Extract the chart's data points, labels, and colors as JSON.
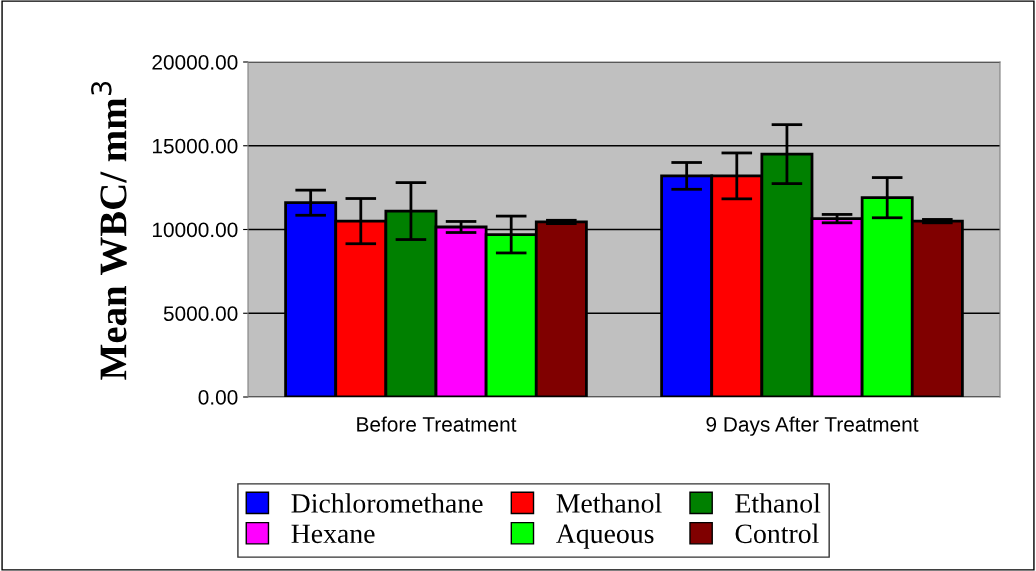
{
  "chart_data": {
    "type": "bar",
    "ylabel": "Mean WBC/ mm$^{3}$",
    "categories": [
      "Before Treatment",
      "9 Days After Treatment"
    ],
    "series": [
      {
        "name": "Dichloromethane",
        "color": "#0000ff",
        "values": [
          11600,
          13200
        ],
        "errors": [
          750,
          800
        ]
      },
      {
        "name": "Methanol",
        "color": "#ff0000",
        "values": [
          10500,
          13200
        ],
        "errors": [
          1350,
          1370
        ]
      },
      {
        "name": "Ethanol",
        "color": "#008000",
        "values": [
          11100,
          14500
        ],
        "errors": [
          1700,
          1760
        ]
      },
      {
        "name": "Hexane",
        "color": "#ff00ff",
        "values": [
          10150,
          10650
        ],
        "errors": [
          330,
          250
        ]
      },
      {
        "name": "Aqueous",
        "color": "#00ff00",
        "values": [
          9700,
          11900
        ],
        "errors": [
          1100,
          1200
        ]
      },
      {
        "name": "Control",
        "color": "#800000",
        "values": [
          10450,
          10500
        ],
        "errors": [
          100,
          100
        ]
      }
    ],
    "ylim": [
      0,
      20000
    ],
    "yticks": [
      {
        "value": 0,
        "label": "0.00"
      },
      {
        "value": 5000,
        "label": "5000.00"
      },
      {
        "value": 10000,
        "label": "10000.00"
      },
      {
        "value": 15000,
        "label": "15000.00"
      },
      {
        "value": 20000,
        "label": "20000.00"
      }
    ],
    "grid": "y",
    "legend": "bottom"
  }
}
